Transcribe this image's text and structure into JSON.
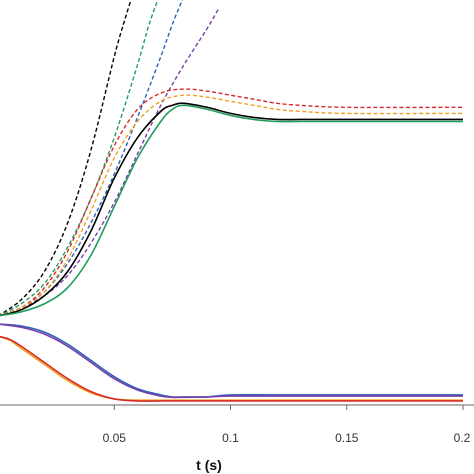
{
  "chart_data": {
    "type": "line",
    "xlabel": "t (s)",
    "ylabel": "",
    "xlim": [
      0.0,
      0.2
    ],
    "ylim": [
      0.0,
      1.0
    ],
    "grid": false,
    "legend": "none",
    "x_ticks": [
      {
        "value": 0.05,
        "label": "0.05"
      },
      {
        "value": 0.1,
        "label": "0.1"
      },
      {
        "value": 0.15,
        "label": "0.15"
      },
      {
        "value": 0.2,
        "label": "0.2"
      }
    ],
    "series": [
      {
        "color": "#000000",
        "dash": true,
        "x": [
          0.0,
          0.01,
          0.02,
          0.03,
          0.04,
          0.05,
          0.055,
          0.06
        ],
        "y": [
          0.22,
          0.26,
          0.33,
          0.45,
          0.63,
          0.86,
          0.96,
          1.05
        ]
      },
      {
        "color": "#1f9e5b",
        "dash": true,
        "x": [
          0.0,
          0.01,
          0.02,
          0.03,
          0.04,
          0.05,
          0.06,
          0.065,
          0.07
        ],
        "y": [
          0.22,
          0.25,
          0.3,
          0.39,
          0.51,
          0.66,
          0.84,
          0.94,
          1.02
        ]
      },
      {
        "color": "#2a62b8",
        "dash": true,
        "x": [
          0.0,
          0.01,
          0.02,
          0.03,
          0.04,
          0.05,
          0.06,
          0.07,
          0.075,
          0.08
        ],
        "y": [
          0.22,
          0.24,
          0.28,
          0.35,
          0.45,
          0.57,
          0.71,
          0.86,
          0.94,
          1.01
        ]
      },
      {
        "color": "#7b3fa8",
        "dash": true,
        "x": [
          0.0,
          0.01,
          0.02,
          0.03,
          0.04,
          0.05,
          0.06,
          0.07,
          0.08,
          0.09,
          0.095
        ],
        "y": [
          0.22,
          0.24,
          0.27,
          0.32,
          0.4,
          0.5,
          0.62,
          0.74,
          0.84,
          0.93,
          0.98
        ]
      },
      {
        "color": "#d62a2a",
        "dash": true,
        "x": [
          0.0,
          0.01,
          0.02,
          0.03,
          0.04,
          0.05,
          0.06,
          0.07,
          0.08,
          0.09,
          0.1,
          0.11,
          0.12,
          0.13,
          0.15,
          0.2
        ],
        "y": [
          0.22,
          0.24,
          0.29,
          0.38,
          0.51,
          0.64,
          0.73,
          0.77,
          0.78,
          0.775,
          0.765,
          0.755,
          0.745,
          0.74,
          0.735,
          0.735
        ]
      },
      {
        "color": "#f0a020",
        "dash": true,
        "x": [
          0.0,
          0.01,
          0.02,
          0.03,
          0.04,
          0.05,
          0.06,
          0.07,
          0.08,
          0.09,
          0.1,
          0.11,
          0.12,
          0.13,
          0.15,
          0.2
        ],
        "y": [
          0.22,
          0.24,
          0.28,
          0.36,
          0.48,
          0.61,
          0.7,
          0.75,
          0.765,
          0.76,
          0.75,
          0.74,
          0.73,
          0.725,
          0.72,
          0.72
        ]
      },
      {
        "color": "#000000",
        "dash": false,
        "x": [
          0.0,
          0.01,
          0.02,
          0.03,
          0.04,
          0.05,
          0.06,
          0.07,
          0.075,
          0.08,
          0.09,
          0.1,
          0.11,
          0.12,
          0.13,
          0.15,
          0.2
        ],
        "y": [
          0.22,
          0.235,
          0.27,
          0.33,
          0.43,
          0.56,
          0.66,
          0.725,
          0.74,
          0.745,
          0.735,
          0.72,
          0.71,
          0.705,
          0.705,
          0.705,
          0.705
        ]
      },
      {
        "color": "#1f9e5b",
        "dash": false,
        "x": [
          0.0,
          0.01,
          0.02,
          0.03,
          0.04,
          0.05,
          0.06,
          0.07,
          0.075,
          0.08,
          0.09,
          0.1,
          0.11,
          0.12,
          0.13,
          0.15,
          0.2
        ],
        "y": [
          0.22,
          0.23,
          0.25,
          0.29,
          0.37,
          0.49,
          0.61,
          0.7,
          0.73,
          0.74,
          0.73,
          0.715,
          0.705,
          0.7,
          0.7,
          0.7,
          0.7
        ]
      },
      {
        "color": "#2a62b8",
        "dash": false,
        "x": [
          0.0,
          0.01,
          0.02,
          0.03,
          0.04,
          0.05,
          0.06,
          0.07,
          0.075,
          0.08,
          0.09,
          0.1,
          0.12,
          0.15,
          0.2
        ],
        "y": [
          0.2,
          0.195,
          0.18,
          0.15,
          0.11,
          0.07,
          0.04,
          0.025,
          0.02,
          0.02,
          0.02,
          0.025,
          0.025,
          0.025,
          0.025
        ]
      },
      {
        "color": "#7b3fa8",
        "dash": false,
        "x": [
          0.0,
          0.01,
          0.02,
          0.03,
          0.04,
          0.05,
          0.06,
          0.07,
          0.075,
          0.08,
          0.09,
          0.1,
          0.12,
          0.15,
          0.2
        ],
        "y": [
          0.2,
          0.192,
          0.175,
          0.145,
          0.105,
          0.065,
          0.037,
          0.022,
          0.019,
          0.019,
          0.02,
          0.022,
          0.022,
          0.022,
          0.022
        ]
      },
      {
        "color": "#f0a020",
        "dash": false,
        "x": [
          0.0,
          0.005,
          0.01,
          0.02,
          0.03,
          0.04,
          0.05,
          0.06,
          0.07,
          0.08,
          0.1,
          0.15,
          0.2
        ],
        "y": [
          0.17,
          0.16,
          0.14,
          0.1,
          0.06,
          0.03,
          0.015,
          0.012,
          0.012,
          0.012,
          0.012,
          0.012,
          0.012
        ]
      },
      {
        "color": "#d62a2a",
        "dash": false,
        "x": [
          0.0,
          0.005,
          0.01,
          0.02,
          0.03,
          0.04,
          0.05,
          0.06,
          0.07,
          0.08,
          0.1,
          0.15,
          0.2
        ],
        "y": [
          0.17,
          0.162,
          0.145,
          0.105,
          0.065,
          0.033,
          0.015,
          0.01,
          0.01,
          0.01,
          0.01,
          0.01,
          0.01
        ]
      }
    ]
  }
}
